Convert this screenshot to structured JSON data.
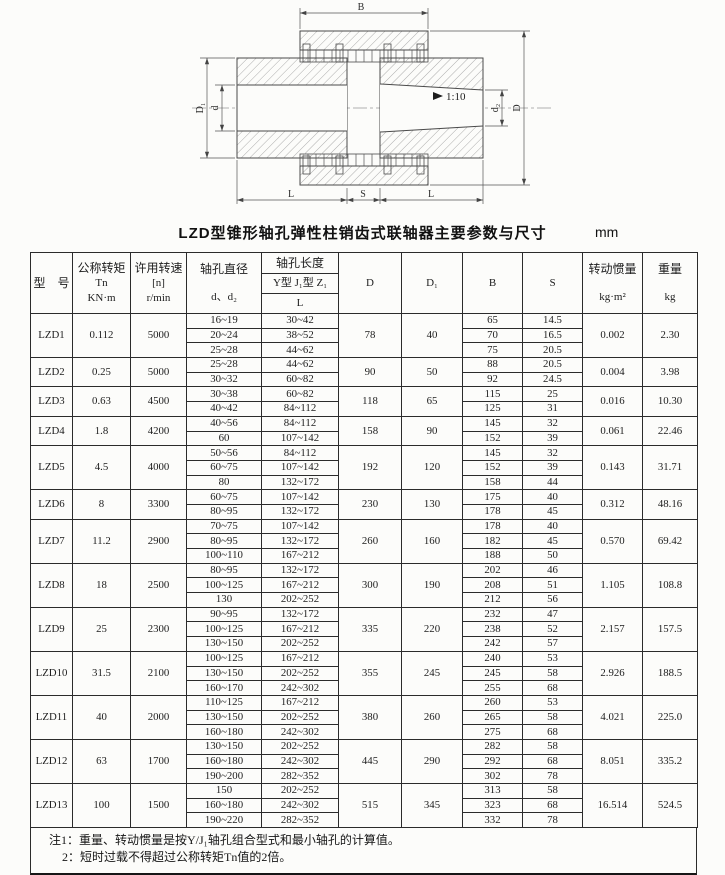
{
  "page": {
    "title": "LZD型锥形轴孔弹性柱销齿式联轴器主要参数与尺寸",
    "unit_label": "mm"
  },
  "drawing": {
    "labels": {
      "B": "B",
      "L_left": "L",
      "S": "S",
      "L_right": "L",
      "D1": "D₁",
      "d": "d",
      "d2": "d₂",
      "D": "D",
      "taper": "1:10"
    }
  },
  "table": {
    "headers": {
      "model": "型　号",
      "torque_l1": "公称转矩",
      "torque_l2": "Tn",
      "torque_l3": "KN·m",
      "speed_l1": "许用转速",
      "speed_l2": "[n]",
      "speed_l3": "r/min",
      "bore_dia_l1": "轴孔直径",
      "bore_dia_l2": "d、d₂",
      "bore_len": "轴孔长度",
      "bore_len_types": "Y型 J₁型 Z₁",
      "bore_len_L": "L",
      "D": "D",
      "D1": "D₁",
      "B": "B",
      "S": "S",
      "inertia_l1": "转动惯量",
      "inertia_l2": "kg·m²",
      "weight_l1": "重量",
      "weight_l2": "kg"
    },
    "rows": [
      {
        "model": "LZD1",
        "torque": "0.112",
        "speed": "5000",
        "D": "78",
        "D1": "40",
        "inertia": "0.002",
        "weight": "2.30",
        "sub": [
          {
            "d": "16~19",
            "L": "30~42",
            "B": "65",
            "S": "14.5"
          },
          {
            "d": "20~24",
            "L": "38~52",
            "B": "70",
            "S": "16.5"
          },
          {
            "d": "25~28",
            "L": "44~62",
            "B": "75",
            "S": "20.5"
          }
        ]
      },
      {
        "model": "LZD2",
        "torque": "0.25",
        "speed": "5000",
        "D": "90",
        "D1": "50",
        "inertia": "0.004",
        "weight": "3.98",
        "sub": [
          {
            "d": "25~28",
            "L": "44~62",
            "B": "88",
            "S": "20.5"
          },
          {
            "d": "30~32",
            "L": "60~82",
            "B": "92",
            "S": "24.5"
          }
        ]
      },
      {
        "model": "LZD3",
        "torque": "0.63",
        "speed": "4500",
        "D": "118",
        "D1": "65",
        "inertia": "0.016",
        "weight": "10.30",
        "sub": [
          {
            "d": "30~38",
            "L": "60~82",
            "B": "115",
            "S": "25"
          },
          {
            "d": "40~42",
            "L": "84~112",
            "B": "125",
            "S": "31"
          }
        ]
      },
      {
        "model": "LZD4",
        "torque": "1.8",
        "speed": "4200",
        "D": "158",
        "D1": "90",
        "inertia": "0.061",
        "weight": "22.46",
        "sub": [
          {
            "d": "40~56",
            "L": "84~112",
            "B": "145",
            "S": "32"
          },
          {
            "d": "60",
            "L": "107~142",
            "B": "152",
            "S": "39"
          }
        ]
      },
      {
        "model": "LZD5",
        "torque": "4.5",
        "speed": "4000",
        "D": "192",
        "D1": "120",
        "inertia": "0.143",
        "weight": "31.71",
        "sub": [
          {
            "d": "50~56",
            "L": "84~112",
            "B": "145",
            "S": "32"
          },
          {
            "d": "60~75",
            "L": "107~142",
            "B": "152",
            "S": "39"
          },
          {
            "d": "80",
            "L": "132~172",
            "B": "158",
            "S": "44"
          }
        ]
      },
      {
        "model": "LZD6",
        "torque": "8",
        "speed": "3300",
        "D": "230",
        "D1": "130",
        "inertia": "0.312",
        "weight": "48.16",
        "sub": [
          {
            "d": "60~75",
            "L": "107~142",
            "B": "175",
            "S": "40"
          },
          {
            "d": "80~95",
            "L": "132~172",
            "B": "178",
            "S": "45"
          }
        ]
      },
      {
        "model": "LZD7",
        "torque": "11.2",
        "speed": "2900",
        "D": "260",
        "D1": "160",
        "inertia": "0.570",
        "weight": "69.42",
        "sub": [
          {
            "d": "70~75",
            "L": "107~142",
            "B": "178",
            "S": "40"
          },
          {
            "d": "80~95",
            "L": "132~172",
            "B": "182",
            "S": "45"
          },
          {
            "d": "100~110",
            "L": "167~212",
            "B": "188",
            "S": "50"
          }
        ]
      },
      {
        "model": "LZD8",
        "torque": "18",
        "speed": "2500",
        "D": "300",
        "D1": "190",
        "inertia": "1.105",
        "weight": "108.8",
        "sub": [
          {
            "d": "80~95",
            "L": "132~172",
            "B": "202",
            "S": "46"
          },
          {
            "d": "100~125",
            "L": "167~212",
            "B": "208",
            "S": "51"
          },
          {
            "d": "130",
            "L": "202~252",
            "B": "212",
            "S": "56"
          }
        ]
      },
      {
        "model": "LZD9",
        "torque": "25",
        "speed": "2300",
        "D": "335",
        "D1": "220",
        "inertia": "2.157",
        "weight": "157.5",
        "sub": [
          {
            "d": "90~95",
            "L": "132~172",
            "B": "232",
            "S": "47"
          },
          {
            "d": "100~125",
            "L": "167~212",
            "B": "238",
            "S": "52"
          },
          {
            "d": "130~150",
            "L": "202~252",
            "B": "242",
            "S": "57"
          }
        ]
      },
      {
        "model": "LZD10",
        "torque": "31.5",
        "speed": "2100",
        "D": "355",
        "D1": "245",
        "inertia": "2.926",
        "weight": "188.5",
        "sub": [
          {
            "d": "100~125",
            "L": "167~212",
            "B": "240",
            "S": "53"
          },
          {
            "d": "130~150",
            "L": "202~252",
            "B": "245",
            "S": "58"
          },
          {
            "d": "160~170",
            "L": "242~302",
            "B": "255",
            "S": "68"
          }
        ]
      },
      {
        "model": "LZD11",
        "torque": "40",
        "speed": "2000",
        "D": "380",
        "D1": "260",
        "inertia": "4.021",
        "weight": "225.0",
        "sub": [
          {
            "d": "110~125",
            "L": "167~212",
            "B": "260",
            "S": "53"
          },
          {
            "d": "130~150",
            "L": "202~252",
            "B": "265",
            "S": "58"
          },
          {
            "d": "160~180",
            "L": "242~302",
            "B": "275",
            "S": "68"
          }
        ]
      },
      {
        "model": "LZD12",
        "torque": "63",
        "speed": "1700",
        "D": "445",
        "D1": "290",
        "inertia": "8.051",
        "weight": "335.2",
        "sub": [
          {
            "d": "130~150",
            "L": "202~252",
            "B": "282",
            "S": "58"
          },
          {
            "d": "160~180",
            "L": "242~302",
            "B": "292",
            "S": "68"
          },
          {
            "d": "190~200",
            "L": "282~352",
            "B": "302",
            "S": "78"
          }
        ]
      },
      {
        "model": "LZD13",
        "torque": "100",
        "speed": "1500",
        "D": "515",
        "D1": "345",
        "inertia": "16.514",
        "weight": "524.5",
        "sub": [
          {
            "d": "150",
            "L": "202~252",
            "B": "313",
            "S": "58"
          },
          {
            "d": "160~180",
            "L": "242~302",
            "B": "323",
            "S": "68"
          },
          {
            "d": "190~220",
            "L": "282~352",
            "B": "332",
            "S": "78"
          }
        ]
      }
    ],
    "notes": [
      "注1：重量、转动惯量是按Y/J₁轴孔组合型式和最小轴孔的计算值。",
      "2：短时过载不得超过公称转矩Tn值的2倍。"
    ]
  }
}
